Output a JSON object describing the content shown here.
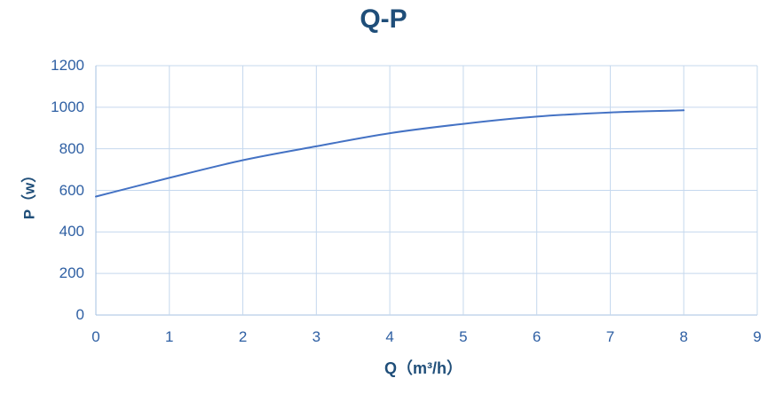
{
  "title": "Q-P",
  "colors": {
    "title": "#1F4E79",
    "axis_label": "#1F4E79",
    "tick_label": "#2E5FA3",
    "line": "#4472C4",
    "gridline": "#C5D8EE",
    "axis_line": "#A4C2E2",
    "background": "#FFFFFF"
  },
  "chart_data": {
    "type": "line",
    "title": "Q-P",
    "xlabel": "Q（m³/h）",
    "ylabel": "P（w）",
    "x": [
      0,
      1,
      2,
      3,
      4,
      5,
      6,
      7,
      8
    ],
    "series": [
      {
        "name": "P",
        "values": [
          570,
          660,
          745,
          812,
          875,
          920,
          955,
          975,
          985
        ]
      }
    ],
    "xlim": [
      0,
      9
    ],
    "ylim": [
      0,
      1200
    ],
    "x_ticks": [
      0,
      1,
      2,
      3,
      4,
      5,
      6,
      7,
      8,
      9
    ],
    "y_ticks": [
      0,
      200,
      400,
      600,
      800,
      1000,
      1200
    ],
    "grid": "both",
    "legend": "none",
    "smooth": true
  }
}
